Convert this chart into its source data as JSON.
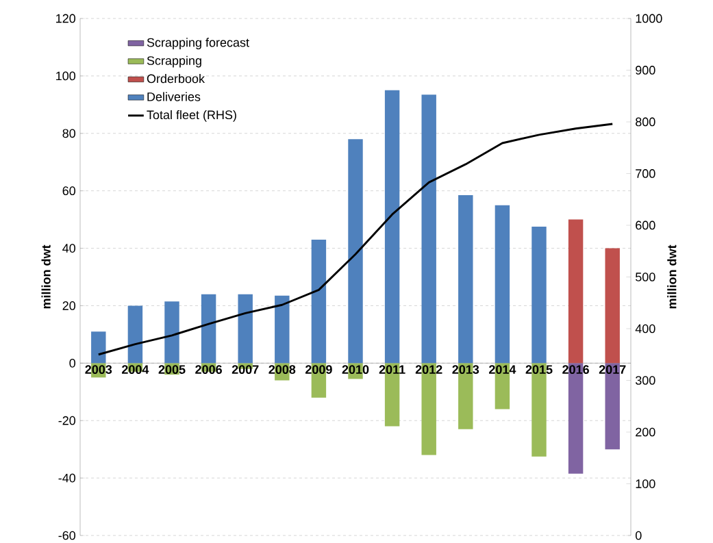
{
  "chart_data": {
    "type": "bar",
    "ylabel": "million dwt",
    "y2label": "million dwt",
    "categories": [
      "2003",
      "2004",
      "2005",
      "2006",
      "2007",
      "2008",
      "2009",
      "2010",
      "2011",
      "2012",
      "2013",
      "2014",
      "2015",
      "2016",
      "2017"
    ],
    "series": [
      {
        "name": "Scrapping forecast",
        "color": "#8064a2",
        "values": [
          null,
          null,
          null,
          null,
          null,
          null,
          null,
          null,
          null,
          null,
          null,
          null,
          null,
          -38.5,
          -30
        ]
      },
      {
        "name": "Scrapping",
        "color": "#9bbb59",
        "values": [
          -5,
          -3,
          -4,
          -3,
          -2,
          -6,
          -12,
          -5.5,
          -22,
          -32,
          -23,
          -16,
          -32.5,
          null,
          null
        ]
      },
      {
        "name": "Orderbook",
        "color": "#c0504d",
        "values": [
          null,
          null,
          null,
          null,
          null,
          null,
          null,
          null,
          null,
          null,
          null,
          null,
          null,
          50,
          40
        ]
      },
      {
        "name": "Deliveries",
        "color": "#4f81bd",
        "values": [
          11,
          20,
          21.5,
          24,
          24,
          23.5,
          43,
          78,
          95,
          93.5,
          58.5,
          55,
          47.5,
          null,
          null
        ]
      },
      {
        "name": "Total fleet (RHS)",
        "type": "line",
        "axis": "y2",
        "color": "#000000",
        "marker": "none",
        "line_style": "solid",
        "values": [
          350,
          370,
          387,
          409,
          430,
          446,
          475,
          544,
          621,
          683,
          718,
          759,
          775,
          787,
          796
        ]
      }
    ],
    "ylim": [
      -60,
      120
    ],
    "yticks": [
      -60,
      -40,
      -20,
      0,
      20,
      40,
      60,
      80,
      100,
      120
    ],
    "y2lim": [
      0,
      1000
    ],
    "y2ticks": [
      0,
      100,
      200,
      300,
      400,
      500,
      600,
      700,
      800,
      900,
      1000
    ],
    "stacked": true,
    "grid": "y",
    "legend": "top left"
  }
}
